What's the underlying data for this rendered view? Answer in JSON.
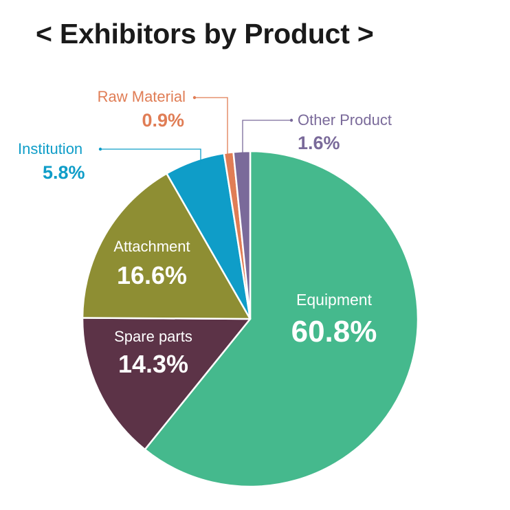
{
  "title": "< Exhibitors by Product >",
  "chart_data": {
    "type": "pie",
    "title": "< Exhibitors by Product >",
    "slices": [
      {
        "label": "Equipment",
        "value_text": "60.8%",
        "value": 60.8,
        "color": "#45b98d"
      },
      {
        "label": "Spare parts",
        "value_text": "14.3%",
        "value": 14.3,
        "color": "#5c3347"
      },
      {
        "label": "Attachment",
        "value_text": "16.6%",
        "value": 16.6,
        "color": "#8e8e33"
      },
      {
        "label": "Institution",
        "value_text": "5.8%",
        "value": 5.8,
        "color": "#0f9dc8"
      },
      {
        "label": "Raw Material",
        "value_text": "0.9%",
        "value": 0.9,
        "color": "#e07d55"
      },
      {
        "label": "Other Product",
        "value_text": "1.6%",
        "value": 1.6,
        "color": "#7a6a9a"
      }
    ]
  }
}
